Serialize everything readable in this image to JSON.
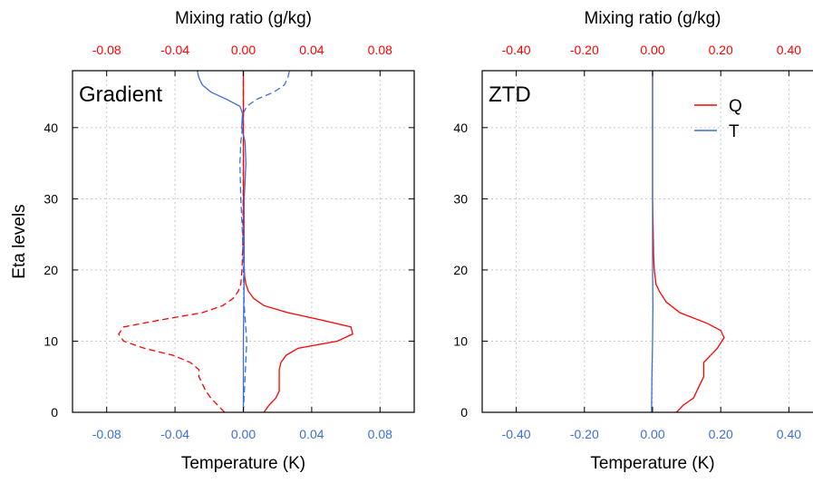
{
  "colors": {
    "q": "#ff0000",
    "t": "#3a6fd8",
    "axis": "#000000",
    "grid": "#c8c8c8"
  },
  "chart_data": [
    {
      "type": "line",
      "title": "Gradient",
      "xlabel_top": "Mixing ratio (g/kg)",
      "xlabel_bottom": "Temperature (K)",
      "ylabel": "Eta levels",
      "xlim": [
        -0.1,
        0.1
      ],
      "ylim": [
        0,
        48
      ],
      "xticks": [
        -0.08,
        -0.04,
        0.0,
        0.04,
        0.08
      ],
      "xtick_labels_top": [
        "-0.08",
        "-0.04",
        "0.00",
        "0.04",
        "0.08"
      ],
      "xtick_labels_bottom": [
        "-0.08",
        "-0.04",
        "0.00",
        "0.04",
        "0.08"
      ],
      "yticks": [
        0,
        10,
        20,
        30,
        40
      ],
      "ytick_labels": [
        "0",
        "10",
        "20",
        "30",
        "40"
      ],
      "grid": true,
      "legend": false,
      "series": [
        {
          "color_key": "q",
          "dash": false,
          "points": [
            [
              0.012,
              0
            ],
            [
              0.015,
              1
            ],
            [
              0.019,
              2
            ],
            [
              0.021,
              3
            ],
            [
              0.021,
              4
            ],
            [
              0.021,
              5
            ],
            [
              0.021,
              6
            ],
            [
              0.022,
              7
            ],
            [
              0.025,
              8
            ],
            [
              0.032,
              9
            ],
            [
              0.055,
              10
            ],
            [
              0.064,
              11
            ],
            [
              0.063,
              12
            ],
            [
              0.045,
              13
            ],
            [
              0.026,
              14
            ],
            [
              0.012,
              15
            ],
            [
              0.006,
              16
            ],
            [
              0.003,
              17
            ],
            [
              0.0015,
              18
            ],
            [
              0.0008,
              19
            ],
            [
              0.0005,
              20
            ],
            [
              0.0003,
              22
            ],
            [
              0.0002,
              25
            ],
            [
              0.0001,
              30
            ],
            [
              0.0001,
              35
            ],
            [
              0.0,
              40
            ],
            [
              0.0,
              45
            ],
            [
              0.0,
              48
            ]
          ]
        },
        {
          "color_key": "q",
          "dash": true,
          "points": [
            [
              -0.011,
              0
            ],
            [
              -0.015,
              1
            ],
            [
              -0.019,
              2
            ],
            [
              -0.022,
              3
            ],
            [
              -0.024,
              4
            ],
            [
              -0.026,
              5
            ],
            [
              -0.026,
              6
            ],
            [
              -0.031,
              7
            ],
            [
              -0.041,
              8
            ],
            [
              -0.058,
              9
            ],
            [
              -0.07,
              10
            ],
            [
              -0.073,
              11
            ],
            [
              -0.07,
              12
            ],
            [
              -0.048,
              13
            ],
            [
              -0.024,
              14
            ],
            [
              -0.012,
              15
            ],
            [
              -0.006,
              16
            ],
            [
              -0.003,
              17
            ],
            [
              -0.0015,
              18
            ],
            [
              -0.0008,
              20
            ],
            [
              -0.0003,
              24
            ],
            [
              -0.0001,
              30
            ],
            [
              0.0,
              40
            ],
            [
              0.0,
              48
            ]
          ]
        },
        {
          "color_key": "t",
          "dash": false,
          "points": [
            [
              0.0,
              0
            ],
            [
              0.0,
              10
            ],
            [
              0.0005,
              20
            ],
            [
              0.0005,
              30
            ],
            [
              0.0015,
              35
            ],
            [
              0.001,
              38
            ],
            [
              -0.001,
              40
            ],
            [
              -0.0005,
              42
            ],
            [
              -0.002,
              43
            ],
            [
              -0.01,
              44
            ],
            [
              -0.019,
              45
            ],
            [
              -0.024,
              46
            ],
            [
              -0.026,
              47
            ],
            [
              -0.027,
              48
            ]
          ]
        },
        {
          "color_key": "t",
          "dash": true,
          "points": [
            [
              0.0,
              0
            ],
            [
              0.001,
              5
            ],
            [
              0.002,
              10
            ],
            [
              0.0005,
              15
            ],
            [
              0.0,
              20
            ],
            [
              -0.0005,
              25
            ],
            [
              -0.0015,
              30
            ],
            [
              -0.002,
              35
            ],
            [
              -0.0015,
              38
            ],
            [
              -0.0005,
              40
            ],
            [
              0.0,
              42
            ],
            [
              0.002,
              43
            ],
            [
              0.008,
              44
            ],
            [
              0.018,
              45
            ],
            [
              0.024,
              46
            ],
            [
              0.026,
              47
            ],
            [
              0.027,
              48
            ]
          ]
        }
      ]
    },
    {
      "type": "line",
      "title": "ZTD",
      "xlabel_top": "Mixing ratio (g/kg)",
      "xlabel_bottom": "Temperature (K)",
      "ylabel": "",
      "xlim": [
        -0.5,
        0.5
      ],
      "ylim": [
        0,
        48
      ],
      "xticks": [
        -0.4,
        -0.2,
        0.0,
        0.2,
        0.4
      ],
      "xtick_labels_top": [
        "-0.40",
        "-0.20",
        "0.00",
        "0.20",
        "0.40"
      ],
      "xtick_labels_bottom": [
        "-0.40",
        "-0.20",
        "0.00",
        "0.20",
        "0.40"
      ],
      "yticks": [
        0,
        10,
        20,
        30,
        40
      ],
      "ytick_labels": [
        "0",
        "10",
        "20",
        "30",
        "40"
      ],
      "grid": true,
      "legend": true,
      "legend_position": "top-right",
      "series": [
        {
          "name": "Q",
          "color_key": "q",
          "dash": false,
          "points": [
            [
              0.07,
              0
            ],
            [
              0.09,
              1
            ],
            [
              0.12,
              2
            ],
            [
              0.13,
              3
            ],
            [
              0.14,
              4
            ],
            [
              0.15,
              5
            ],
            [
              0.15,
              6
            ],
            [
              0.15,
              7
            ],
            [
              0.17,
              8
            ],
            [
              0.19,
              9
            ],
            [
              0.21,
              10.5
            ],
            [
              0.2,
              11.5
            ],
            [
              0.16,
              12.5
            ],
            [
              0.08,
              14
            ],
            [
              0.04,
              15.5
            ],
            [
              0.02,
              17
            ],
            [
              0.01,
              18
            ],
            [
              0.005,
              20
            ],
            [
              0.003,
              22
            ],
            [
              0.002,
              25
            ],
            [
              0.0,
              30
            ],
            [
              0.0,
              40
            ],
            [
              0.0,
              48
            ]
          ]
        },
        {
          "name": "T",
          "color_key": "t",
          "dash": false,
          "points": [
            [
              -0.003,
              0
            ],
            [
              -0.002,
              5
            ],
            [
              0.0,
              10
            ],
            [
              0.001,
              15
            ],
            [
              0.0,
              20
            ],
            [
              0.0,
              30
            ],
            [
              0.0,
              40
            ],
            [
              0.0,
              48
            ]
          ]
        }
      ]
    }
  ]
}
